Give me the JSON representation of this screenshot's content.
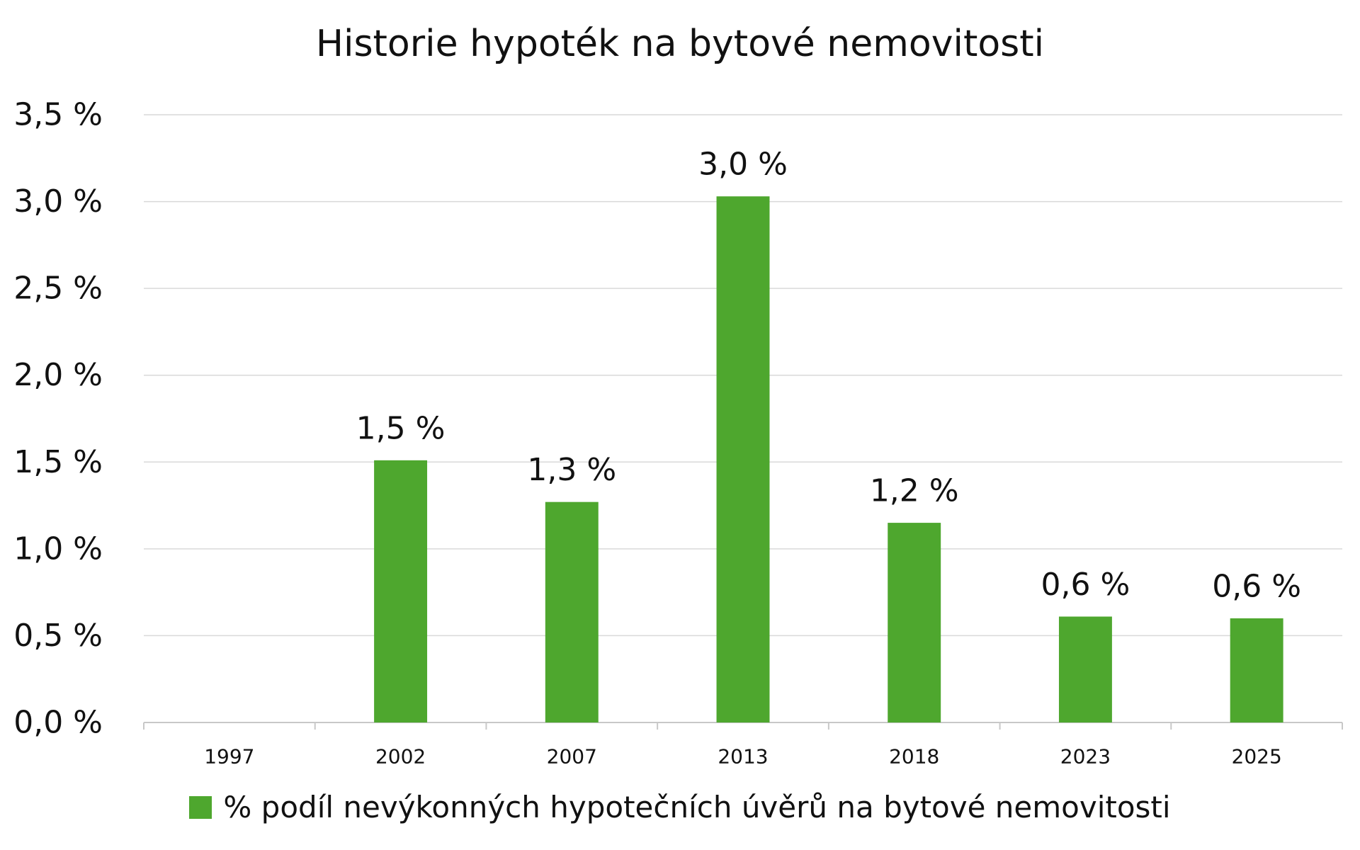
{
  "chart_data": {
    "type": "bar",
    "title": "Historie hypoték na bytové nemovitosti",
    "xlabel": "",
    "ylabel": "",
    "categories": [
      "1997",
      "2002",
      "2007",
      "2013",
      "2018",
      "2023",
      "2025"
    ],
    "series": [
      {
        "name": "% podíl nevýkonných hypotečních úvěrů na bytové nemovitosti",
        "values": [
          null,
          1.51,
          1.27,
          3.03,
          1.15,
          0.61,
          0.6
        ],
        "labels": [
          "",
          "1,5 %",
          "1,3 %",
          "3,0 %",
          "1,2 %",
          "0,6 %",
          "0,6 %"
        ],
        "color": "#4ea72e"
      }
    ],
    "yticks": [
      "0,0 %",
      "0,5 %",
      "1,0 %",
      "1,5 %",
      "2,0 %",
      "2,5 %",
      "3,0 %",
      "3,5 %"
    ],
    "ylim": [
      0,
      3.5
    ],
    "ystep": 0.5,
    "grid": true,
    "legend": "bottom",
    "gridColor": "#d9d9d9",
    "axisColor": "#c8c8c8"
  }
}
